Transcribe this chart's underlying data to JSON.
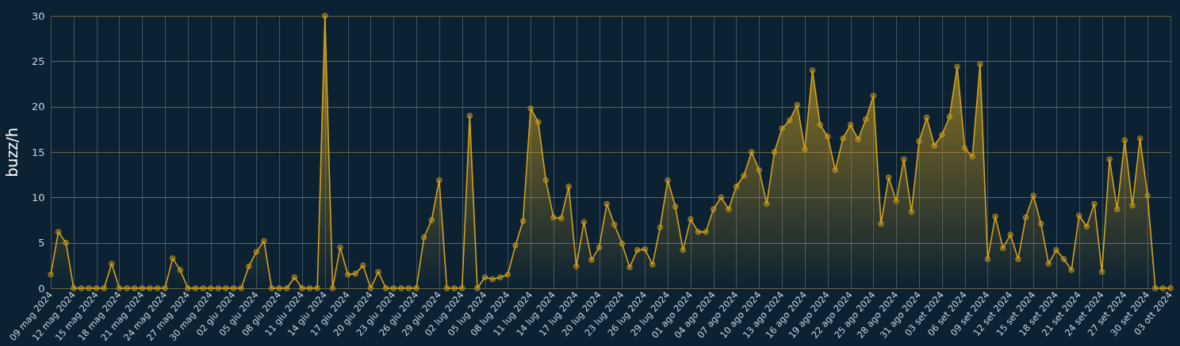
{
  "chart_data": {
    "type": "area",
    "ylabel": "buzz/h",
    "color": "#d4a21a",
    "grid": true,
    "marker": "circle",
    "x": [
      "2024-05-09",
      "2024-05-10",
      "2024-05-11",
      "2024-05-12",
      "2024-05-13",
      "2024-05-14",
      "2024-05-15",
      "2024-05-16",
      "2024-05-17",
      "2024-05-18",
      "2024-05-19",
      "2024-05-20",
      "2024-05-21",
      "2024-05-22",
      "2024-05-23",
      "2024-05-24",
      "2024-05-25",
      "2024-05-26",
      "2024-05-27",
      "2024-05-28",
      "2024-05-29",
      "2024-05-30",
      "2024-05-31",
      "2024-06-01",
      "2024-06-02",
      "2024-06-03",
      "2024-06-04",
      "2024-06-05",
      "2024-06-06",
      "2024-06-07",
      "2024-06-08",
      "2024-06-09",
      "2024-06-10",
      "2024-06-11",
      "2024-06-12",
      "2024-06-13",
      "2024-06-14",
      "2024-06-15",
      "2024-06-16",
      "2024-06-17",
      "2024-06-18",
      "2024-06-19",
      "2024-06-20",
      "2024-06-21",
      "2024-06-22",
      "2024-06-23",
      "2024-06-24",
      "2024-06-25",
      "2024-06-26",
      "2024-06-27",
      "2024-06-28",
      "2024-06-29",
      "2024-06-30",
      "2024-07-01",
      "2024-07-02",
      "2024-07-03",
      "2024-07-04",
      "2024-07-05",
      "2024-07-06",
      "2024-07-07",
      "2024-07-08",
      "2024-07-09",
      "2024-07-10",
      "2024-07-11",
      "2024-07-12",
      "2024-07-13",
      "2024-07-14",
      "2024-07-15",
      "2024-07-16",
      "2024-07-17",
      "2024-07-18",
      "2024-07-19",
      "2024-07-20",
      "2024-07-21",
      "2024-07-22",
      "2024-07-23",
      "2024-07-24",
      "2024-07-25",
      "2024-07-26",
      "2024-07-27",
      "2024-07-28",
      "2024-07-29",
      "2024-07-30",
      "2024-07-31",
      "2024-08-01",
      "2024-08-02",
      "2024-08-03",
      "2024-08-04",
      "2024-08-05",
      "2024-08-06",
      "2024-08-07",
      "2024-08-08",
      "2024-08-09",
      "2024-08-10",
      "2024-08-11",
      "2024-08-12",
      "2024-08-13",
      "2024-08-14",
      "2024-08-15",
      "2024-08-16",
      "2024-08-17",
      "2024-08-18",
      "2024-08-19",
      "2024-08-20",
      "2024-08-21",
      "2024-08-22",
      "2024-08-23",
      "2024-08-24",
      "2024-08-25",
      "2024-08-26",
      "2024-08-27",
      "2024-08-28",
      "2024-08-29",
      "2024-08-30",
      "2024-08-31",
      "2024-09-01",
      "2024-09-02",
      "2024-09-03",
      "2024-09-04",
      "2024-09-05",
      "2024-09-06",
      "2024-09-07",
      "2024-09-08",
      "2024-09-09",
      "2024-09-10",
      "2024-09-11",
      "2024-09-12",
      "2024-09-13",
      "2024-09-14",
      "2024-09-15",
      "2024-09-16",
      "2024-09-17",
      "2024-09-18",
      "2024-09-19",
      "2024-09-20",
      "2024-09-21",
      "2024-09-22",
      "2024-09-23",
      "2024-09-24",
      "2024-09-25",
      "2024-09-26",
      "2024-09-27",
      "2024-09-28",
      "2024-09-29",
      "2024-09-30",
      "2024-10-01",
      "2024-10-02",
      "2024-10-03"
    ],
    "values": [
      1.5,
      6.2,
      5.0,
      0,
      0,
      0,
      0,
      0,
      2.7,
      0,
      0,
      0,
      0,
      0,
      0,
      0,
      3.3,
      2.0,
      0,
      0,
      0,
      0,
      0,
      0,
      0,
      0,
      2.4,
      4.0,
      5.2,
      0,
      0,
      0,
      1.2,
      0,
      0,
      0,
      30,
      0,
      4.5,
      1.5,
      1.6,
      2.5,
      0,
      1.8,
      0,
      0,
      0,
      0,
      0,
      5.6,
      7.5,
      11.9,
      0,
      0,
      0,
      19.0,
      0,
      1.2,
      1.0,
      1.2,
      1.5,
      4.7,
      7.4,
      19.8,
      18.3,
      11.9,
      7.8,
      7.7,
      11.2,
      2.4,
      7.3,
      3.1,
      4.5,
      9.3,
      7.0,
      4.9,
      2.3,
      4.2,
      4.3,
      2.6,
      6.7,
      11.9,
      9.0,
      4.2,
      7.6,
      6.2,
      6.2,
      8.7,
      10.0,
      8.7,
      11.2,
      12.4,
      15.0,
      13.0,
      9.3,
      15.0,
      17.6,
      18.5,
      20.2,
      15.3,
      24.0,
      18.0,
      16.7,
      13.0,
      16.5,
      18.0,
      16.4,
      18.6,
      21.2,
      7.1,
      12.2,
      9.6,
      14.2,
      8.4,
      16.2,
      18.8,
      15.7,
      16.9,
      18.9,
      24.4,
      15.4,
      14.5,
      24.7,
      3.2,
      7.9,
      4.4,
      5.9,
      3.2,
      7.8,
      10.2,
      7.1,
      2.7,
      4.2,
      3.2,
      2.0,
      8.0,
      6.8,
      9.3,
      1.8,
      14.2,
      8.7,
      16.3,
      9.1,
      16.5,
      10.2,
      0,
      0,
      0
    ],
    "xlim": [
      "2024-05-09",
      "2024-10-03"
    ],
    "xticks": [
      {
        "value": "2024-05-09",
        "label": "09 mag 2024"
      },
      {
        "value": "2024-05-12",
        "label": "12 mag 2024"
      },
      {
        "value": "2024-05-15",
        "label": "15 mag 2024"
      },
      {
        "value": "2024-05-18",
        "label": "18 mag 2024"
      },
      {
        "value": "2024-05-21",
        "label": "21 mag 2024"
      },
      {
        "value": "2024-05-24",
        "label": "24 mag 2024"
      },
      {
        "value": "2024-05-27",
        "label": "27 mag 2024"
      },
      {
        "value": "2024-05-30",
        "label": "30 mag 2024"
      },
      {
        "value": "2024-06-02",
        "label": "02 giu 2024"
      },
      {
        "value": "2024-06-05",
        "label": "05 giu 2024"
      },
      {
        "value": "2024-06-08",
        "label": "08 giu 2024"
      },
      {
        "value": "2024-06-11",
        "label": "11 giu 2024"
      },
      {
        "value": "2024-06-14",
        "label": "14 giu 2024"
      },
      {
        "value": "2024-06-17",
        "label": "17 giu 2024"
      },
      {
        "value": "2024-06-20",
        "label": "20 giu 2024"
      },
      {
        "value": "2024-06-23",
        "label": "23 giu 2024"
      },
      {
        "value": "2024-06-26",
        "label": "26 giu 2024"
      },
      {
        "value": "2024-06-29",
        "label": "29 giu 2024"
      },
      {
        "value": "2024-07-02",
        "label": "02 lug 2024"
      },
      {
        "value": "2024-07-05",
        "label": "05 lug 2024"
      },
      {
        "value": "2024-07-08",
        "label": "08 lug 2024"
      },
      {
        "value": "2024-07-11",
        "label": "11 lug 2024"
      },
      {
        "value": "2024-07-14",
        "label": "14 lug 2024"
      },
      {
        "value": "2024-07-17",
        "label": "17 lug 2024"
      },
      {
        "value": "2024-07-20",
        "label": "20 lug 2024"
      },
      {
        "value": "2024-07-23",
        "label": "23 lug 2024"
      },
      {
        "value": "2024-07-26",
        "label": "26 lug 2024"
      },
      {
        "value": "2024-07-29",
        "label": "29 lug 2024"
      },
      {
        "value": "2024-08-01",
        "label": "01 ago 2024"
      },
      {
        "value": "2024-08-04",
        "label": "04 ago 2024"
      },
      {
        "value": "2024-08-07",
        "label": "07 ago 2024"
      },
      {
        "value": "2024-08-10",
        "label": "10 ago 2024"
      },
      {
        "value": "2024-08-13",
        "label": "13 ago 2024"
      },
      {
        "value": "2024-08-16",
        "label": "16 ago 2024"
      },
      {
        "value": "2024-08-19",
        "label": "19 ago 2024"
      },
      {
        "value": "2024-08-22",
        "label": "22 ago 2024"
      },
      {
        "value": "2024-08-25",
        "label": "25 ago 2024"
      },
      {
        "value": "2024-08-28",
        "label": "28 ago 2024"
      },
      {
        "value": "2024-08-31",
        "label": "31 ago 2024"
      },
      {
        "value": "2024-09-03",
        "label": "03 set 2024"
      },
      {
        "value": "2024-09-06",
        "label": "06 set 2024"
      },
      {
        "value": "2024-09-09",
        "label": "09 set 2024"
      },
      {
        "value": "2024-09-12",
        "label": "12 set 2024"
      },
      {
        "value": "2024-09-15",
        "label": "15 set 2024"
      },
      {
        "value": "2024-09-18",
        "label": "18 set 2024"
      },
      {
        "value": "2024-09-21",
        "label": "21 set 2024"
      },
      {
        "value": "2024-09-24",
        "label": "24 set 2024"
      },
      {
        "value": "2024-09-27",
        "label": "27 set 2024"
      },
      {
        "value": "2024-09-30",
        "label": "30 set 2024"
      },
      {
        "value": "2024-10-03",
        "label": "03 ott 2024"
      }
    ],
    "ylim": [
      0,
      30
    ],
    "yticks": [
      0,
      5,
      10,
      15,
      20,
      25,
      30
    ]
  }
}
